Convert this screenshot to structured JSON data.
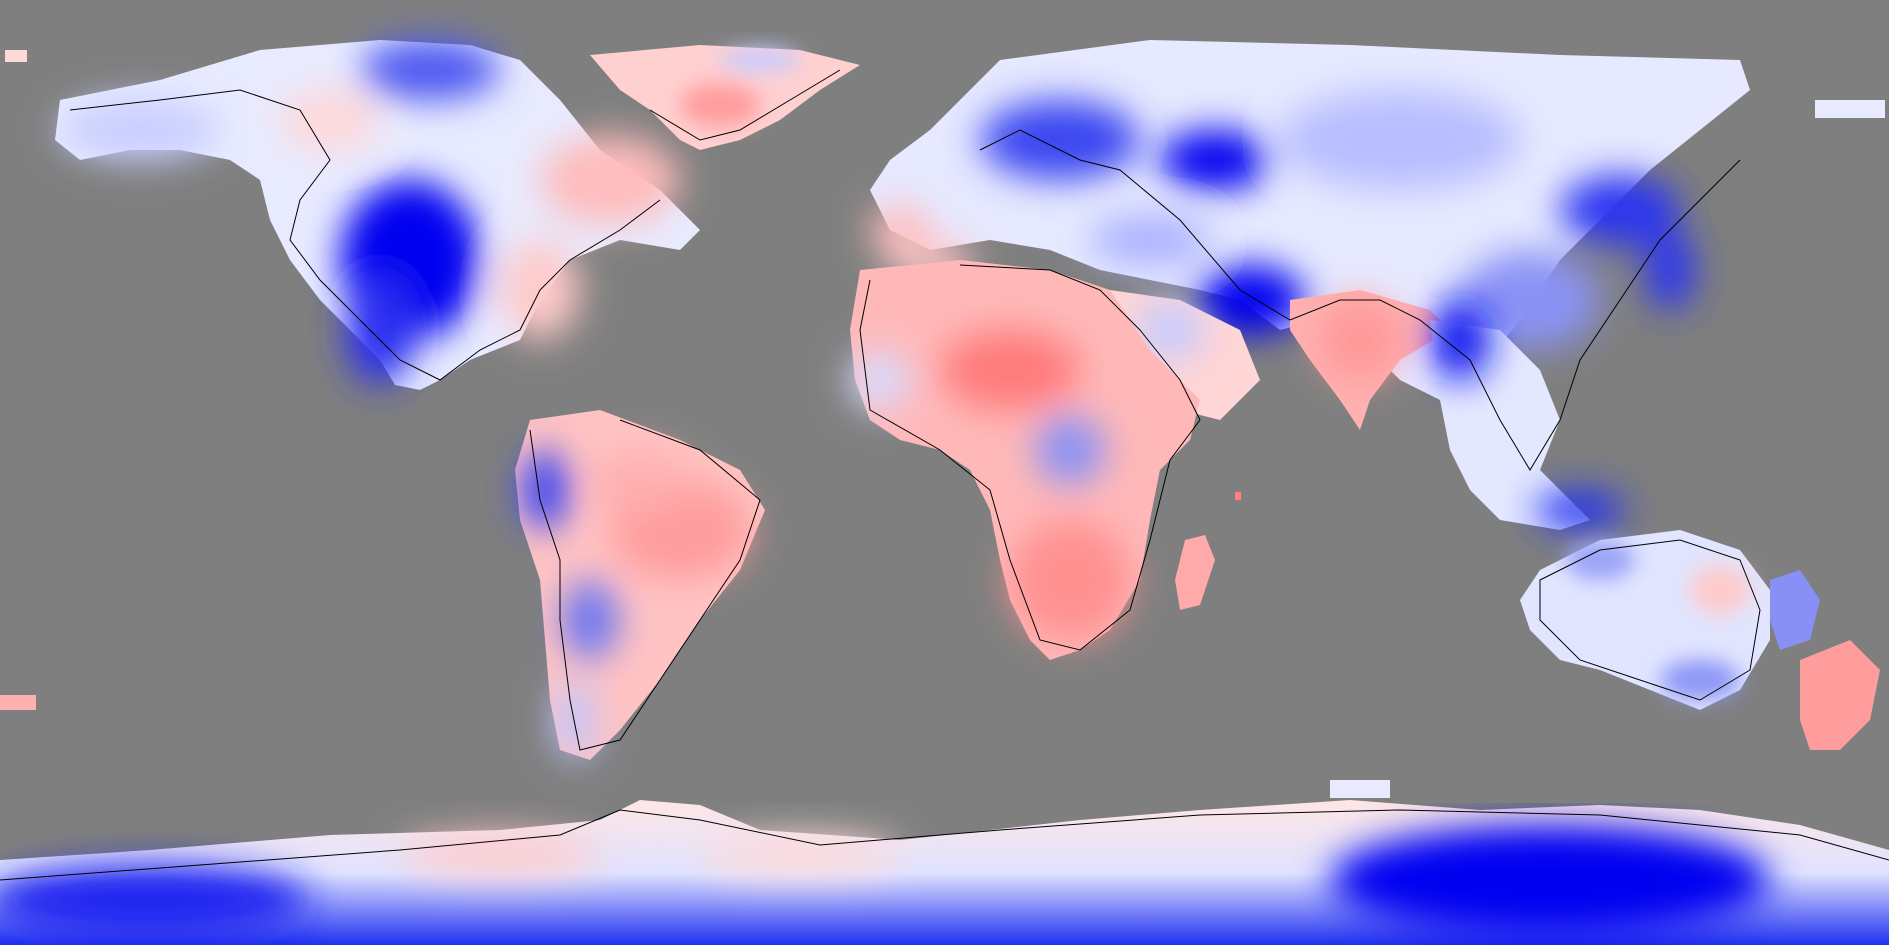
{
  "map": {
    "projection": "equirectangular",
    "background_color": "#7f7f7f",
    "palette": {
      "strong_cold": "#0000f0",
      "cold": "#6e78f5",
      "neutral": "#ffffff",
      "warm": "#ff9b9b",
      "strong_warm": "#f05050"
    },
    "coastline_color": "#000000",
    "regions": [
      {
        "name": "north-america",
        "anomaly": "cool"
      },
      {
        "name": "central-us",
        "anomaly": "strong-cool"
      },
      {
        "name": "eastern-canada",
        "anomaly": "warm"
      },
      {
        "name": "greenland",
        "anomaly": "warm"
      },
      {
        "name": "south-america",
        "anomaly": "warm"
      },
      {
        "name": "patagonia",
        "anomaly": "cool"
      },
      {
        "name": "africa",
        "anomaly": "warm"
      },
      {
        "name": "central-africa",
        "anomaly": "cool"
      },
      {
        "name": "europe",
        "anomaly": "cool"
      },
      {
        "name": "siberia",
        "anomaly": "cool"
      },
      {
        "name": "india",
        "anomaly": "warm"
      },
      {
        "name": "east-asia",
        "anomaly": "cool"
      },
      {
        "name": "australia",
        "anomaly": "cool"
      },
      {
        "name": "new-zealand",
        "anomaly": "warm"
      },
      {
        "name": "antarctica-west",
        "anomaly": "mixed"
      },
      {
        "name": "antarctica-east",
        "anomaly": "strong-cool"
      }
    ]
  }
}
